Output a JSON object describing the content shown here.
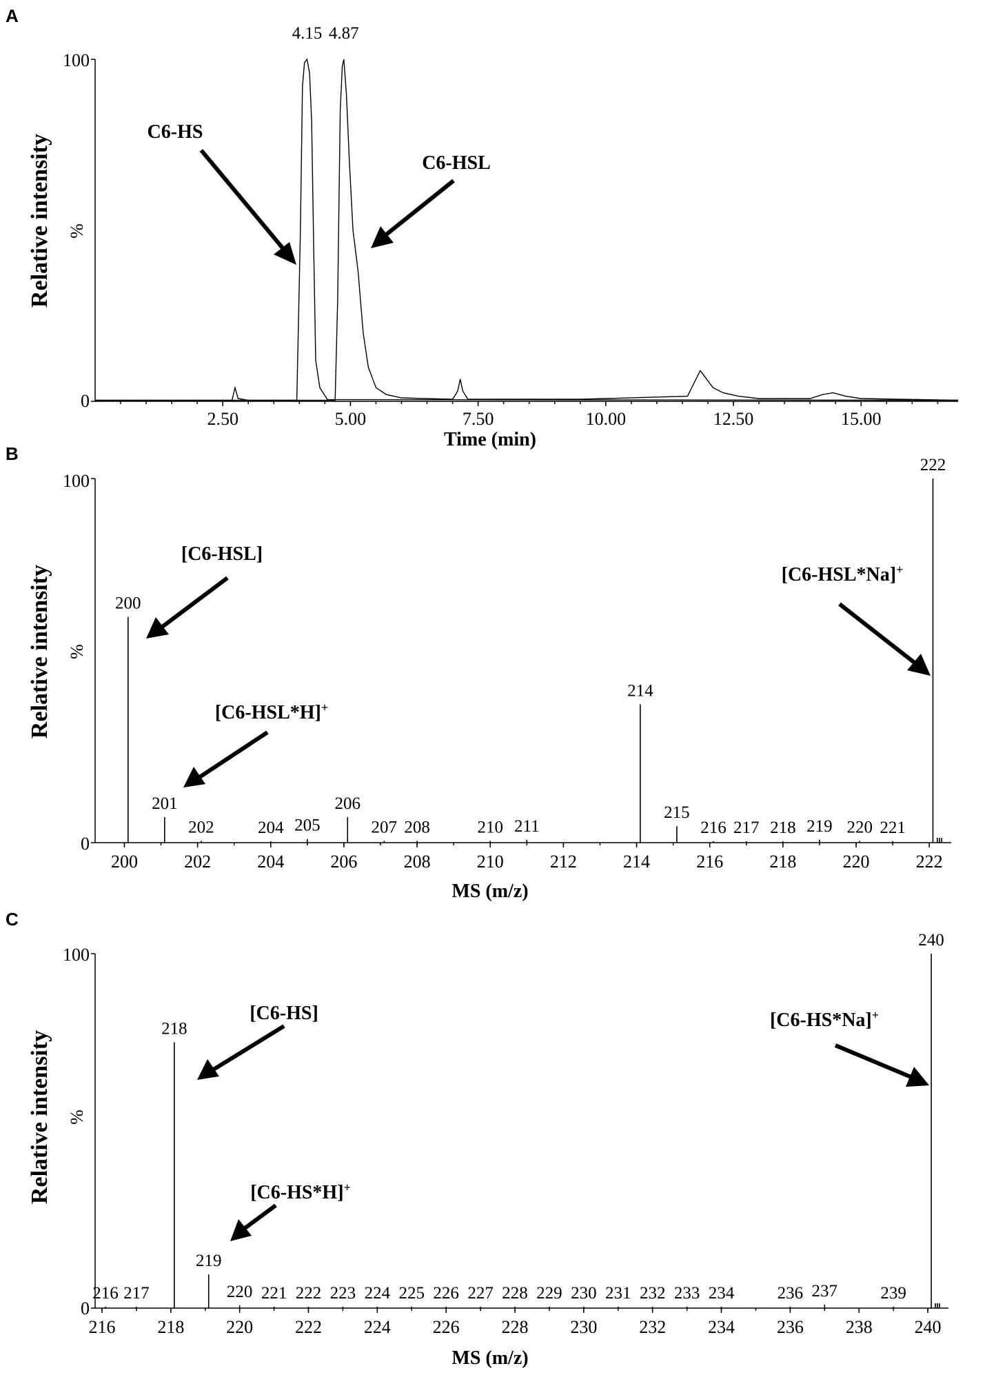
{
  "chart_data": [
    {
      "id": "A",
      "type": "line",
      "panel_label": "A",
      "ylabel": "Relative intensity",
      "yunit": "%",
      "xlabel": "Time (min)",
      "xlim": [
        0,
        16.9
      ],
      "ylim": [
        0,
        100
      ],
      "y_ticks": [
        "0",
        "100"
      ],
      "x_ticks": [
        "2.50",
        "5.00",
        "7.50",
        "10.00",
        "12.50",
        "15.00"
      ],
      "x_tick_values": [
        2.5,
        5.0,
        7.5,
        10.0,
        12.5,
        15.0
      ],
      "series": [
        {
          "name": "C6-HS",
          "x": [
            0,
            3.95,
            4.02,
            4.06,
            4.1,
            4.15,
            4.2,
            4.24,
            4.28,
            4.32,
            4.4,
            4.55,
            16.9
          ],
          "y": [
            0.3,
            0.3,
            50,
            92,
            99,
            100,
            96,
            82,
            45,
            12,
            4,
            0.5,
            0.3
          ]
        },
        {
          "name": "C6-HSL",
          "x": [
            0,
            2.68,
            2.74,
            2.8,
            3.0,
            4.7,
            4.75,
            4.8,
            4.84,
            4.87,
            4.92,
            4.98,
            5.05,
            5.15,
            5.25,
            5.35,
            5.5,
            5.7,
            6.0,
            7.0,
            7.1,
            7.15,
            7.2,
            7.3,
            9.5,
            11.6,
            11.75,
            11.85,
            11.95,
            12.1,
            12.3,
            12.6,
            13.0,
            14.0,
            14.25,
            14.45,
            14.7,
            15.0,
            16.9
          ],
          "y": [
            0.3,
            0.3,
            4,
            0.8,
            0.3,
            0.3,
            30,
            85,
            98,
            100,
            90,
            70,
            50,
            38,
            20,
            10,
            4,
            2,
            1,
            0.6,
            3,
            6.5,
            3,
            0.6,
            0.6,
            1.5,
            6,
            9,
            7,
            4,
            2.5,
            1.5,
            0.8,
            0.8,
            2,
            2.5,
            1.5,
            0.8,
            0.3
          ]
        }
      ],
      "peak_labels": [
        {
          "x": 4.15,
          "text": "4.15"
        },
        {
          "x": 4.87,
          "text": "4.87"
        }
      ],
      "annotations": [
        {
          "text": "C6-HS"
        },
        {
          "text": "C6-HSL"
        }
      ]
    },
    {
      "id": "B",
      "type": "bar",
      "panel_label": "B",
      "ylabel": "Relative intensity",
      "yunit": "%",
      "xlabel": "MS (m/z)",
      "xlim": [
        199.2,
        222.6
      ],
      "ylim": [
        0,
        100
      ],
      "y_ticks": [
        "0",
        "100"
      ],
      "x_ticks": [
        "200",
        "202",
        "204",
        "206",
        "208",
        "210",
        "212",
        "214",
        "216",
        "218",
        "220",
        "222"
      ],
      "x_tick_values": [
        200,
        202,
        204,
        206,
        208,
        210,
        212,
        214,
        216,
        218,
        220,
        222
      ],
      "peaks": {
        "mz": [
          200.1,
          201.1,
          202.1,
          204.0,
          205.0,
          206.1,
          207.1,
          208.0,
          210.0,
          211.0,
          214.1,
          215.1,
          216.1,
          217.0,
          218.0,
          219.0,
          220.1,
          221.0,
          222.1
        ],
        "intensity": [
          62,
          7,
          0.5,
          0.4,
          1,
          7,
          0.5,
          0.5,
          0.5,
          0.8,
          38,
          4.5,
          0.4,
          0.4,
          0.4,
          0.8,
          0.5,
          0.4,
          100
        ],
        "labels": [
          "200",
          "201",
          "202",
          "204",
          "205",
          "206",
          "207",
          "208",
          "210",
          "211",
          "214",
          "215",
          "216",
          "217",
          "218",
          "219",
          "220",
          "221",
          "222"
        ]
      },
      "annotations": [
        {
          "text": "[C6-HSL]"
        },
        {
          "text": "[C6-HSL*H]",
          "superscript": "+"
        },
        {
          "text": "[C6-HSL*Na]",
          "superscript": "+"
        }
      ]
    },
    {
      "id": "C",
      "type": "bar",
      "panel_label": "C",
      "ylabel": "Relative intensity",
      "yunit": "%",
      "xlabel": "MS (m/z)",
      "xlim": [
        215.8,
        240.6
      ],
      "ylim": [
        0,
        100
      ],
      "y_ticks": [
        "0",
        "100"
      ],
      "x_ticks": [
        "216",
        "218",
        "220",
        "222",
        "224",
        "226",
        "228",
        "230",
        "232",
        "234",
        "236",
        "238",
        "240"
      ],
      "x_tick_values": [
        216,
        218,
        220,
        222,
        224,
        226,
        228,
        230,
        232,
        234,
        236,
        238,
        240
      ],
      "peaks": {
        "mz": [
          216.1,
          217.0,
          218.1,
          219.1,
          220.0,
          221.0,
          222.0,
          223.0,
          224.0,
          225.0,
          226.0,
          227.0,
          228.0,
          229.0,
          230.0,
          231.0,
          232.0,
          233.0,
          234.0,
          236.0,
          237.0,
          239.0,
          240.1
        ],
        "intensity": [
          0.4,
          0.4,
          75,
          9.5,
          0.8,
          0.4,
          0.4,
          0.4,
          0.4,
          0.4,
          0.4,
          0.4,
          0.4,
          0.4,
          0.4,
          0.4,
          0.4,
          0.4,
          0.4,
          0.4,
          1,
          0.4,
          100
        ],
        "labels": [
          "216",
          "217",
          "218",
          "219",
          "220",
          "221",
          "222",
          "223",
          "224",
          "225",
          "226",
          "227",
          "228",
          "229",
          "230",
          "231",
          "232",
          "233",
          "234",
          "236",
          "237",
          "239",
          "240"
        ]
      },
      "annotations": [
        {
          "text": "[C6-HS]"
        },
        {
          "text": "[C6-HS*H]",
          "superscript": "+"
        },
        {
          "text": "[C6-HS*Na]",
          "superscript": "+"
        }
      ]
    }
  ]
}
